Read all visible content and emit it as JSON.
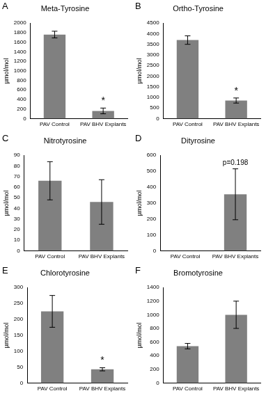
{
  "chart_data": [
    {
      "type": "bar",
      "panel": "A",
      "title": "Meta-Tyrosine",
      "y_label": "µmol/mol",
      "categories": [
        "PAV Control",
        "PAV BHV Explants"
      ],
      "values": [
        1760,
        160
      ],
      "errors": [
        70,
        60
      ],
      "color": "#808080",
      "ylim": [
        0,
        2000
      ],
      "yticks": [
        0,
        200,
        400,
        600,
        800,
        1000,
        1200,
        1400,
        1600,
        1800,
        2000
      ],
      "grid": false,
      "annotations": [
        {
          "text": "*",
          "category": 1
        }
      ]
    },
    {
      "type": "bar",
      "panel": "B",
      "title": "Ortho-Tyrosine",
      "y_label": "µmol/mol",
      "categories": [
        "PAV Control",
        "PAV BHV Explants"
      ],
      "values": [
        3700,
        850
      ],
      "errors": [
        200,
        120
      ],
      "color": "#808080",
      "ylim": [
        0,
        4500
      ],
      "yticks": [
        0,
        500,
        1000,
        1500,
        2000,
        2500,
        3000,
        3500,
        4000,
        4500
      ],
      "grid": false,
      "annotations": [
        {
          "text": "*",
          "category": 1
        }
      ]
    },
    {
      "type": "bar",
      "panel": "C",
      "title": "Nitrotyrosine",
      "y_label": "µmol/mol",
      "categories": [
        "PAV Control",
        "PAV BHV Explants"
      ],
      "values": [
        66,
        46
      ],
      "errors": [
        18,
        21
      ],
      "color": "#808080",
      "ylim": [
        0,
        90
      ],
      "yticks": [
        0,
        10,
        20,
        30,
        40,
        50,
        60,
        70,
        80,
        90
      ],
      "grid": false,
      "annotations": []
    },
    {
      "type": "bar",
      "panel": "D",
      "title": "Dityrosine",
      "y_label": "µmol/mol",
      "categories": [
        "PAV Control",
        "PAV BHV Explants"
      ],
      "values": [
        0,
        355
      ],
      "errors": [
        null,
        160
      ],
      "color": "#808080",
      "ylim": [
        0,
        600
      ],
      "yticks": [
        0,
        100,
        200,
        300,
        400,
        500,
        600
      ],
      "grid": false,
      "annotations": [
        {
          "text": "p=0.198",
          "category": 1
        }
      ]
    },
    {
      "type": "bar",
      "panel": "E",
      "title": "Chlorotyrosine",
      "y_label": "µmol/mol",
      "categories": [
        "PAV Control",
        "PAV BHV Explants"
      ],
      "values": [
        225,
        43
      ],
      "errors": [
        50,
        5
      ],
      "color": "#808080",
      "ylim": [
        0,
        300
      ],
      "yticks": [
        0,
        50,
        100,
        150,
        200,
        250,
        300
      ],
      "grid": false,
      "annotations": [
        {
          "text": "*",
          "category": 1
        }
      ]
    },
    {
      "type": "bar",
      "panel": "F",
      "title": "Bromotyrosine",
      "y_label": "µmol/mol",
      "categories": [
        "PAV Control",
        "PAV BHV Explants"
      ],
      "values": [
        540,
        1000
      ],
      "errors": [
        40,
        200
      ],
      "color": "#808080",
      "ylim": [
        0,
        1400
      ],
      "yticks": [
        0,
        200,
        400,
        600,
        800,
        1000,
        1200,
        1400
      ],
      "grid": false,
      "annotations": []
    }
  ]
}
